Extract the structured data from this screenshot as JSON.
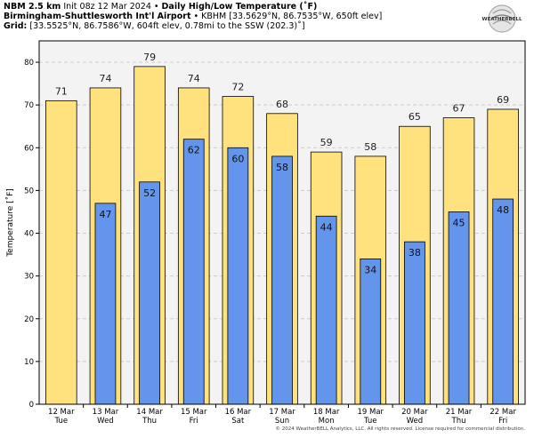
{
  "header": {
    "model": "NBM 2.5 km",
    "init": "Init 08z 12 Mar 2024",
    "bullet": "•",
    "product": "Daily High/Low Temperature (˚F)",
    "station_name": "Birmingham-Shuttlesworth Int'l Airport",
    "station_info": "KBHM [33.5629°N, 86.7535°W, 650ft elev]",
    "grid_label": "Grid:",
    "grid_info": "[33.5525°N, 86.7586°W, 604ft elev, 0.78mi to the SSW (202.3)˚]"
  },
  "logo": {
    "text": "WEATHERBELL",
    "icon": "weatherbell-swirl-logo"
  },
  "copyright": "© 2024 WeatherBELL Analytics, LLC. All rights reserved. License required for commercial distribution.",
  "colors": {
    "high_fill": "#ffe17e",
    "low_fill": "#6495ed",
    "plot_bg": "#f3f3f3",
    "grid": "#cccccc"
  },
  "chart_data": {
    "type": "bar",
    "ylabel": "Temperature [˚F]",
    "ylim": [
      0,
      85
    ],
    "yticks": [
      0,
      10,
      20,
      30,
      40,
      50,
      60,
      70,
      80
    ],
    "grid": true,
    "categories": [
      {
        "date": "12 Mar",
        "day": "Tue"
      },
      {
        "date": "13 Mar",
        "day": "Wed"
      },
      {
        "date": "14 Mar",
        "day": "Thu"
      },
      {
        "date": "15 Mar",
        "day": "Fri"
      },
      {
        "date": "16 Mar",
        "day": "Sat"
      },
      {
        "date": "17 Mar",
        "day": "Sun"
      },
      {
        "date": "18 Mar",
        "day": "Mon"
      },
      {
        "date": "19 Mar",
        "day": "Tue"
      },
      {
        "date": "20 Mar",
        "day": "Wed"
      },
      {
        "date": "21 Mar",
        "day": "Thu"
      },
      {
        "date": "22 Mar",
        "day": "Fri"
      }
    ],
    "series": [
      {
        "key": "high",
        "values": [
          71,
          74,
          79,
          74,
          72,
          68,
          59,
          58,
          65,
          67,
          69
        ]
      },
      {
        "key": "low",
        "values": [
          null,
          47,
          52,
          62,
          60,
          58,
          44,
          34,
          38,
          45,
          48
        ]
      }
    ]
  }
}
